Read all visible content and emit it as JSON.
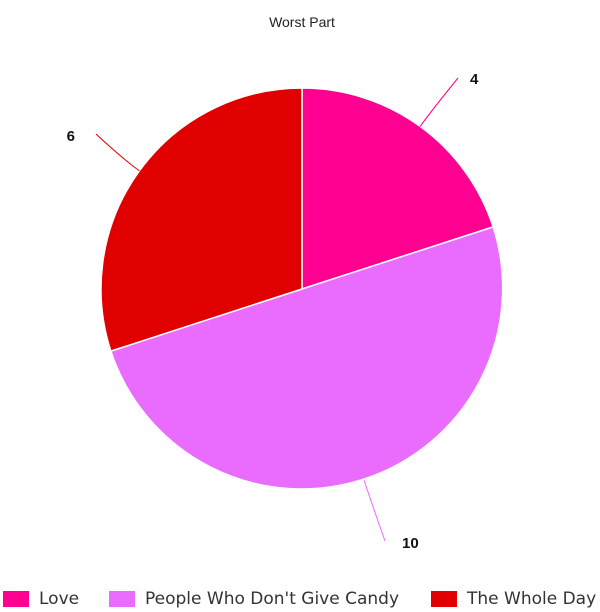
{
  "chart_data": {
    "type": "pie",
    "title": "Worst Part",
    "categories": [
      "Love",
      "People Who Don't Give Candy",
      "The Whole Day"
    ],
    "values": [
      4,
      10,
      6
    ],
    "colors": [
      "#ff0090",
      "#e96cff",
      "#e10000"
    ],
    "data_labels": [
      "4",
      "10",
      "6"
    ],
    "legend_position": "bottom",
    "start_angle_deg": 0,
    "direction": "clockwise"
  }
}
